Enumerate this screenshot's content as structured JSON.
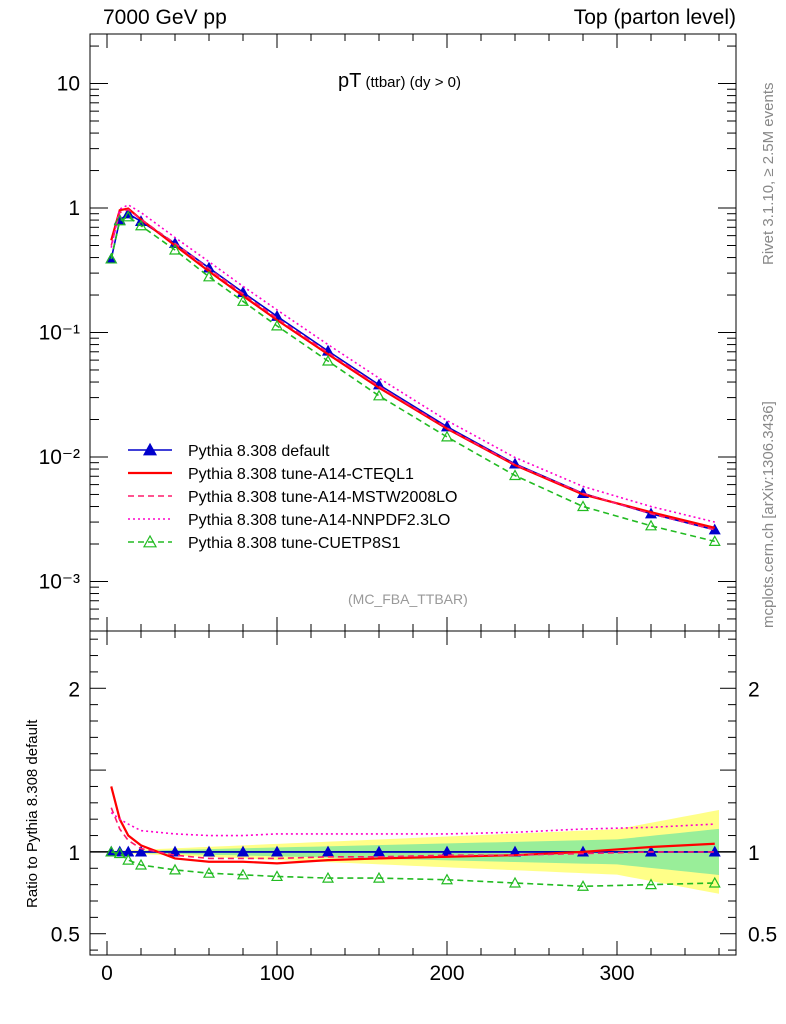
{
  "header": {
    "left": "7000 GeV pp",
    "right": "Top (parton level)"
  },
  "plot_title_main": "pT",
  "plot_title_sub": " (ttbar)  (dy > 0)",
  "side_labels": {
    "rivet": "Rivet 3.1.10, ≥ 2.5M events",
    "mcplots": "mcplots.cern.ch [arXiv:1306.3436]"
  },
  "analysis_id": "(MC_FBA_TTBAR)",
  "ratio_ylabel": "Ratio to Pythia 8.308 default",
  "chart_data": {
    "type": "line",
    "main_panel": {
      "yscale": "log",
      "xlim": [
        -10,
        370
      ],
      "ylim": [
        0.0004,
        25
      ],
      "y_tick_labels": [
        "10",
        "1",
        "10⁻¹",
        "10⁻²",
        "10⁻³"
      ],
      "legend_placement": "bottom-left"
    },
    "ratio_panel": {
      "ylim": [
        0.37,
        2.35
      ],
      "y_tick_labels": [
        "2",
        "1",
        "0.5"
      ]
    },
    "x_tick_labels": [
      "0",
      "100",
      "200",
      "300"
    ],
    "series": [
      {
        "name": "Pythia 8.308 default",
        "color": "#0000cc",
        "style": "solid-triangle",
        "x": [
          2.5,
          7.5,
          12.5,
          20,
          40,
          60,
          80,
          100,
          130,
          160,
          200,
          240,
          280,
          320,
          357.5
        ],
        "values": [
          0.39,
          0.8,
          0.9,
          0.78,
          0.52,
          0.33,
          0.21,
          0.135,
          0.071,
          0.038,
          0.0175,
          0.0088,
          0.0051,
          0.0035,
          0.0026
        ],
        "ratio": [
          1,
          1,
          1,
          1,
          1,
          1,
          1,
          1,
          1,
          1,
          1,
          1,
          1,
          1,
          1
        ]
      },
      {
        "name": "Pythia 8.308 tune-A14-CTEQL1",
        "color": "#ff0000",
        "style": "solid",
        "x": [
          2.5,
          7.5,
          12.5,
          20,
          40,
          60,
          80,
          100,
          130,
          160,
          200,
          240,
          280,
          320,
          357.5
        ],
        "values": [
          0.55,
          0.96,
          0.99,
          0.81,
          0.5,
          0.31,
          0.197,
          0.126,
          0.067,
          0.036,
          0.0169,
          0.0086,
          0.005,
          0.0036,
          0.0027
        ],
        "ratio": [
          1.4,
          1.2,
          1.1,
          1.04,
          0.96,
          0.94,
          0.94,
          0.93,
          0.95,
          0.96,
          0.97,
          0.98,
          1.0,
          1.03,
          1.05
        ]
      },
      {
        "name": "Pythia 8.308 tune-A14-MSTW2008LO",
        "color": "#ff1a6c",
        "style": "dashed",
        "x": [
          2.5,
          7.5,
          12.5,
          20,
          40,
          60,
          80,
          100,
          130,
          160,
          200,
          240,
          280,
          320,
          357.5
        ],
        "values": [
          0.5,
          0.92,
          0.97,
          0.81,
          0.52,
          0.325,
          0.205,
          0.13,
          0.069,
          0.037,
          0.0171,
          0.0087,
          0.0051,
          0.0035,
          0.0026
        ],
        "ratio": [
          1.27,
          1.14,
          1.07,
          1.02,
          0.98,
          0.96,
          0.96,
          0.96,
          0.97,
          0.97,
          0.98,
          0.98,
          0.99,
          1.0,
          1.0
        ]
      },
      {
        "name": "Pythia 8.308 tune-A14-NNPDF2.3LO",
        "color": "#ff00cc",
        "style": "dotted",
        "x": [
          2.5,
          7.5,
          12.5,
          20,
          40,
          60,
          80,
          100,
          130,
          160,
          200,
          240,
          280,
          320,
          357.5
        ],
        "values": [
          0.48,
          0.98,
          1.06,
          0.92,
          0.58,
          0.37,
          0.235,
          0.152,
          0.08,
          0.043,
          0.0196,
          0.0099,
          0.0058,
          0.004,
          0.003
        ],
        "ratio": [
          1.24,
          1.2,
          1.17,
          1.13,
          1.11,
          1.1,
          1.1,
          1.11,
          1.11,
          1.11,
          1.11,
          1.12,
          1.14,
          1.15,
          1.17
        ]
      },
      {
        "name": "Pythia 8.308 tune-CUETP8S1",
        "color": "#22bb22",
        "style": "dashed-open-triangle",
        "x": [
          2.5,
          7.5,
          12.5,
          20,
          40,
          60,
          80,
          100,
          130,
          160,
          200,
          240,
          280,
          320,
          357.5
        ],
        "values": [
          0.39,
          0.79,
          0.85,
          0.72,
          0.46,
          0.28,
          0.178,
          0.113,
          0.059,
          0.031,
          0.0145,
          0.0071,
          0.004,
          0.0028,
          0.0021
        ],
        "ratio": [
          1.0,
          0.99,
          0.95,
          0.92,
          0.89,
          0.87,
          0.86,
          0.85,
          0.84,
          0.84,
          0.83,
          0.81,
          0.79,
          0.8,
          0.81
        ]
      }
    ]
  }
}
